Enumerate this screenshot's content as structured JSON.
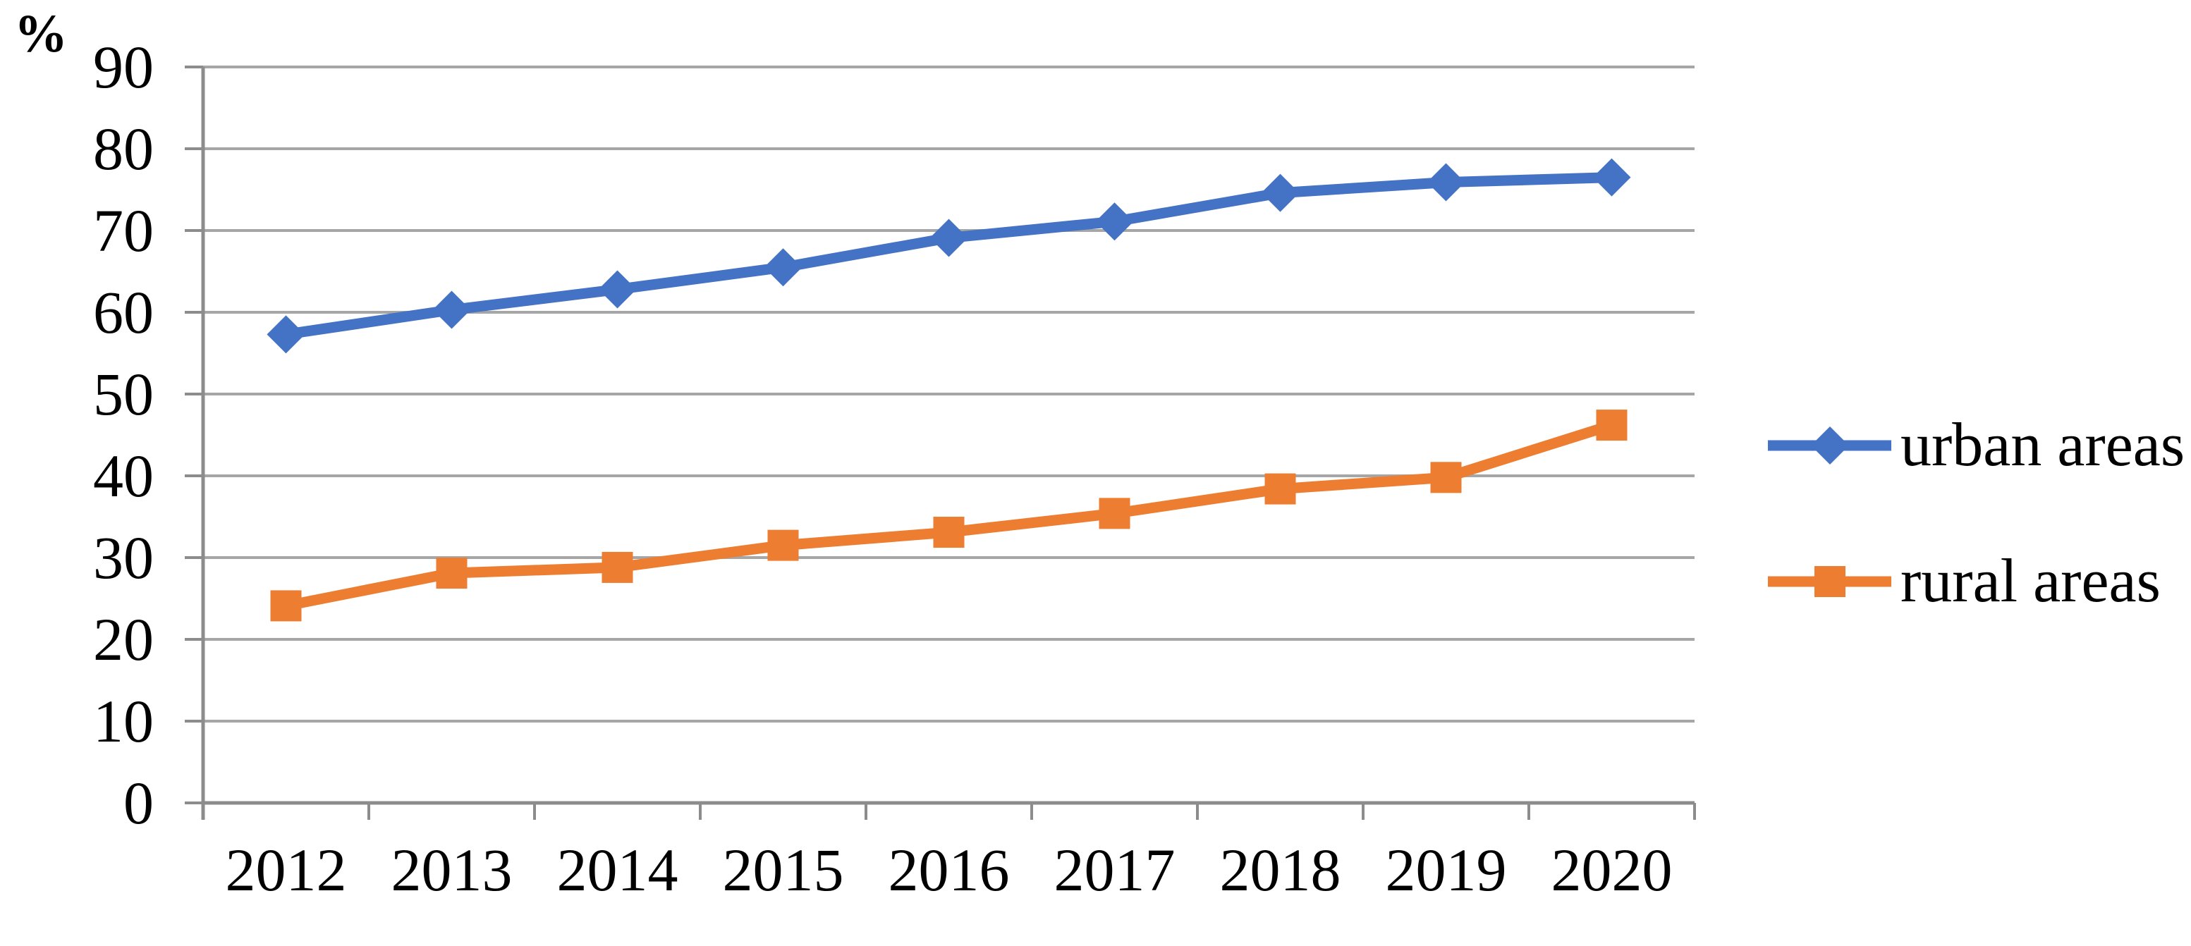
{
  "chart_data": {
    "type": "line",
    "percent_label": "%",
    "categories": [
      "2012",
      "2013",
      "2014",
      "2015",
      "2016",
      "2017",
      "2018",
      "2019",
      "2020"
    ],
    "series": [
      {
        "name": "urban areas",
        "color": "#4472C4",
        "marker": "diamond",
        "values": [
          57.3,
          60.3,
          62.8,
          65.5,
          69.1,
          71.1,
          74.6,
          75.9,
          76.5
        ]
      },
      {
        "name": "rural areas",
        "color": "#ED7D31",
        "marker": "square",
        "values": [
          24.1,
          28.1,
          28.8,
          31.5,
          33.1,
          35.4,
          38.4,
          39.8,
          46.2
        ]
      }
    ],
    "ylabel": "%",
    "xlabel": "",
    "ylim": [
      0,
      90
    ],
    "y_tick_step": 10,
    "y_tick_labels": [
      "0",
      "10",
      "20",
      "30",
      "40",
      "50",
      "60",
      "70",
      "80",
      "90"
    ],
    "grid": true,
    "legend_position": "right",
    "colors": {
      "gridline": "#A6A6A6",
      "axis": "#8C8C8C",
      "text": "#000000",
      "background": "#FFFFFF"
    }
  }
}
